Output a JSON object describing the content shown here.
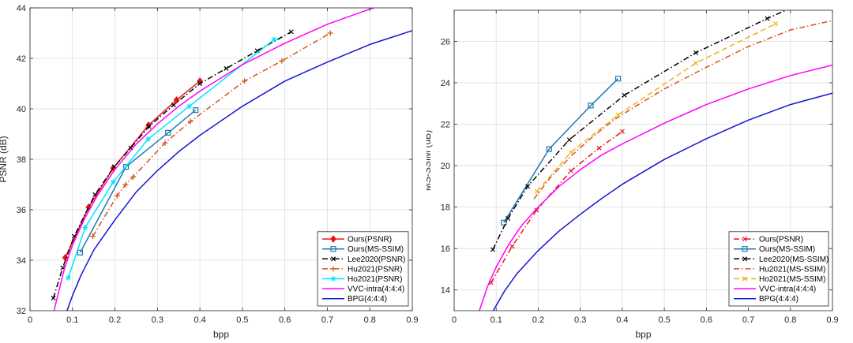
{
  "chart_data": [
    {
      "type": "line",
      "xlabel": "bpp",
      "ylabel": "PSNR (dB)",
      "xlim": [
        0,
        0.9
      ],
      "ylim": [
        32,
        44
      ],
      "xticks": [
        0,
        0.1,
        0.2,
        0.3,
        0.4,
        0.5,
        0.6,
        0.7,
        0.8,
        0.9
      ],
      "yticks": [
        32,
        34,
        36,
        38,
        40,
        42,
        44
      ],
      "grid": true,
      "legend_position": "bottom-right",
      "series": [
        {
          "name": "Ours(PSNR)",
          "color": "#e8141b",
          "dash": "solid",
          "marker": "diamond",
          "x": [
            0.083,
            0.138,
            0.196,
            0.279,
            0.345,
            0.4
          ],
          "y": [
            34.1,
            36.1,
            37.65,
            39.35,
            40.35,
            41.1
          ]
        },
        {
          "name": "Ours(MS-SSIM)",
          "color": "#1f77b4",
          "dash": "solid",
          "marker": "square",
          "x": [
            0.118,
            0.226,
            0.325,
            0.39
          ],
          "y": [
            34.3,
            37.7,
            39.05,
            39.95
          ]
        },
        {
          "name": "Lee2020(PSNR)",
          "color": "#000000",
          "dash": "dashdot",
          "marker": "x",
          "x": [
            0.055,
            0.077,
            0.104,
            0.153,
            0.198,
            0.237,
            0.28,
            0.338,
            0.4,
            0.462,
            0.535,
            0.615
          ],
          "y": [
            32.5,
            33.7,
            34.95,
            36.6,
            37.7,
            38.45,
            39.3,
            40.15,
            41.0,
            41.6,
            42.3,
            43.05
          ]
        },
        {
          "name": "Hu2021(PSNR)",
          "color": "#d95319",
          "dash": "dashdot",
          "marker": "plus",
          "x": [
            0.148,
            0.205,
            0.225,
            0.243,
            0.318,
            0.378,
            0.505,
            0.593,
            0.707
          ],
          "y": [
            34.95,
            36.55,
            37.0,
            37.3,
            38.65,
            39.5,
            41.1,
            41.9,
            43.0
          ]
        },
        {
          "name": "Ho2021(PSNR)",
          "color": "#00e5ff",
          "dash": "solid",
          "marker": "asterisk",
          "x": [
            0.09,
            0.13,
            0.196,
            0.278,
            0.375,
            0.575
          ],
          "y": [
            33.3,
            35.3,
            37.1,
            38.8,
            40.1,
            42.75
          ]
        },
        {
          "name": "VVC-intra(4:4:4)",
          "color": "#ff00ff",
          "dash": "solid",
          "marker": "none",
          "x": [
            0.055,
            0.08,
            0.1,
            0.13,
            0.16,
            0.2,
            0.25,
            0.3,
            0.35,
            0.4,
            0.5,
            0.6,
            0.7,
            0.8,
            0.9
          ],
          "y": [
            31.9,
            33.6,
            34.6,
            35.7,
            36.6,
            37.6,
            38.6,
            39.4,
            40.1,
            40.7,
            41.75,
            42.6,
            43.35,
            43.95,
            44.5
          ]
        },
        {
          "name": "BPG(4:4:4)",
          "color": "#1414d2",
          "dash": "solid",
          "marker": "none",
          "x": [
            0.085,
            0.1,
            0.12,
            0.15,
            0.2,
            0.25,
            0.3,
            0.35,
            0.4,
            0.5,
            0.6,
            0.7,
            0.8,
            0.9
          ],
          "y": [
            31.9,
            32.6,
            33.4,
            34.4,
            35.6,
            36.7,
            37.55,
            38.3,
            38.95,
            40.1,
            41.1,
            41.85,
            42.55,
            43.1
          ]
        }
      ]
    },
    {
      "type": "line",
      "xlabel": "bpp",
      "ylabel": "MS-SSIM (dB)",
      "xlim": [
        0,
        0.9
      ],
      "ylim": [
        13,
        27.5
      ],
      "xticks": [
        0,
        0.1,
        0.2,
        0.3,
        0.4,
        0.5,
        0.6,
        0.7,
        0.8,
        0.9
      ],
      "yticks": [
        14,
        16,
        18,
        20,
        22,
        24,
        26
      ],
      "grid": true,
      "legend_position": "bottom-right",
      "series": [
        {
          "name": "Ours(PSNR)",
          "color": "#e8141b",
          "dash": "dashdot",
          "marker": "x",
          "x": [
            0.088,
            0.138,
            0.196,
            0.278,
            0.345,
            0.4
          ],
          "y": [
            14.35,
            16.1,
            17.85,
            19.75,
            20.85,
            21.65
          ]
        },
        {
          "name": "Ours(MS-SSIM)",
          "color": "#1f77b4",
          "dash": "solid",
          "marker": "square",
          "x": [
            0.118,
            0.226,
            0.325,
            0.39
          ],
          "y": [
            17.25,
            20.8,
            22.9,
            24.2
          ]
        },
        {
          "name": "Lee2020(MS-SSIM)",
          "color": "#000000",
          "dash": "dashdot",
          "marker": "x",
          "x": [
            0.092,
            0.128,
            0.175,
            0.274,
            0.405,
            0.575,
            0.745,
            0.8
          ],
          "y": [
            15.95,
            17.45,
            19.0,
            21.25,
            23.4,
            25.45,
            27.1,
            27.6
          ]
        },
        {
          "name": "Hu2021(MS-SSIM)",
          "color": "#d95319",
          "dash": "dashdot",
          "marker": "none",
          "x": [
            0.19,
            0.23,
            0.28,
            0.33,
            0.38,
            0.43,
            0.5,
            0.6,
            0.7,
            0.8,
            0.9
          ],
          "y": [
            18.4,
            19.45,
            20.5,
            21.4,
            22.2,
            22.85,
            23.7,
            24.75,
            25.75,
            26.55,
            27.0
          ]
        },
        {
          "name": "Ho2021(MS-SSIM)",
          "color": "#edb120",
          "dash": "dashed",
          "marker": "x",
          "x": [
            0.197,
            0.278,
            0.39,
            0.575,
            0.765
          ],
          "y": [
            18.75,
            20.65,
            22.45,
            24.95,
            26.85
          ]
        },
        {
          "name": "VVC-intra(4:4:4)",
          "color": "#ff00ff",
          "dash": "solid",
          "marker": "none",
          "x": [
            0.06,
            0.08,
            0.1,
            0.13,
            0.16,
            0.2,
            0.25,
            0.3,
            0.35,
            0.4,
            0.5,
            0.6,
            0.7,
            0.8,
            0.9
          ],
          "y": [
            13.0,
            14.2,
            15.1,
            16.2,
            17.1,
            18.0,
            19.0,
            19.8,
            20.5,
            21.05,
            22.05,
            22.95,
            23.7,
            24.35,
            24.85
          ]
        },
        {
          "name": "BPG(4:4:4)",
          "color": "#1414d2",
          "dash": "solid",
          "marker": "none",
          "x": [
            0.093,
            0.12,
            0.15,
            0.2,
            0.25,
            0.3,
            0.35,
            0.4,
            0.5,
            0.6,
            0.7,
            0.8,
            0.9
          ],
          "y": [
            13.0,
            13.95,
            14.8,
            15.9,
            16.85,
            17.65,
            18.4,
            19.1,
            20.3,
            21.3,
            22.2,
            22.95,
            23.5
          ]
        }
      ]
    }
  ]
}
